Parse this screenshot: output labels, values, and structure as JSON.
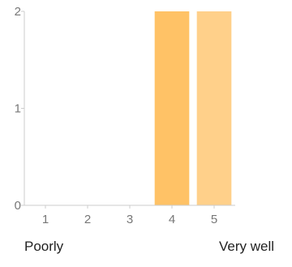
{
  "chart_data": {
    "type": "bar",
    "categories": [
      "1",
      "2",
      "3",
      "4",
      "5"
    ],
    "values": [
      0,
      0,
      0,
      2,
      2
    ],
    "bar_colors": [
      "#ffc266",
      "#ffc266",
      "#ffc266",
      "#ffc266",
      "#ffd08a"
    ],
    "y_ticks": [
      "0",
      "1",
      "2"
    ],
    "ylim": [
      0,
      2
    ],
    "title": "",
    "xlabel": "",
    "ylabel": "",
    "grid": false,
    "axis_color": "#cccccc",
    "tick_text_color": "#777777"
  },
  "scale_labels": {
    "low": "Poorly",
    "high": "Very well"
  }
}
